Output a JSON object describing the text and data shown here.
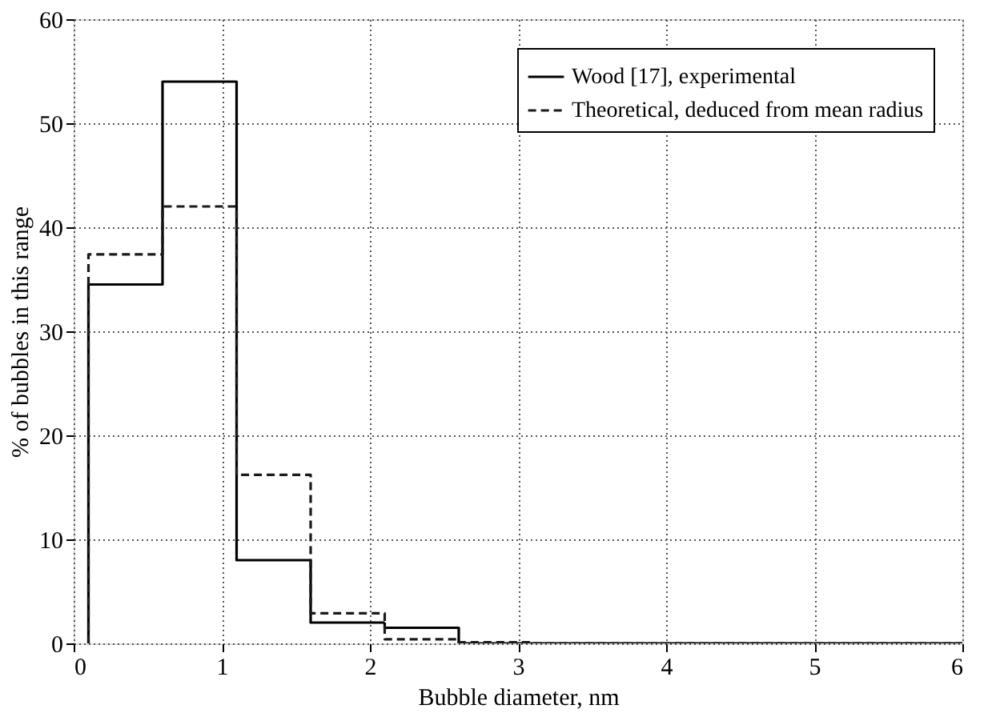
{
  "chart_data": {
    "type": "histogram",
    "xlabel": "Bubble diameter, nm",
    "ylabel": "% of bubbles in this range",
    "bins": [
      0.1,
      0.6,
      1.1,
      1.6,
      2.1,
      2.6,
      3.1,
      6.0
    ],
    "series": [
      {
        "name": "Wood [17], experimental",
        "color": "#000000",
        "line_style": "solid",
        "values": [
          34.5,
          54,
          8,
          2,
          1.5,
          0,
          0
        ]
      },
      {
        "name": "Theoretical, deduced from mean radius",
        "color": "#1a1a1a",
        "line_style": "dashed",
        "values": [
          37.4,
          42,
          16.2,
          2.9,
          0.4,
          0.1,
          0
        ]
      }
    ],
    "xlim": [
      0,
      6
    ],
    "ylim": [
      0,
      60
    ],
    "xticks": [
      0,
      1,
      2,
      3,
      4,
      5,
      6
    ],
    "yticks": [
      0,
      10,
      20,
      30,
      40,
      50,
      60
    ],
    "grid": true,
    "legend": "top right"
  }
}
